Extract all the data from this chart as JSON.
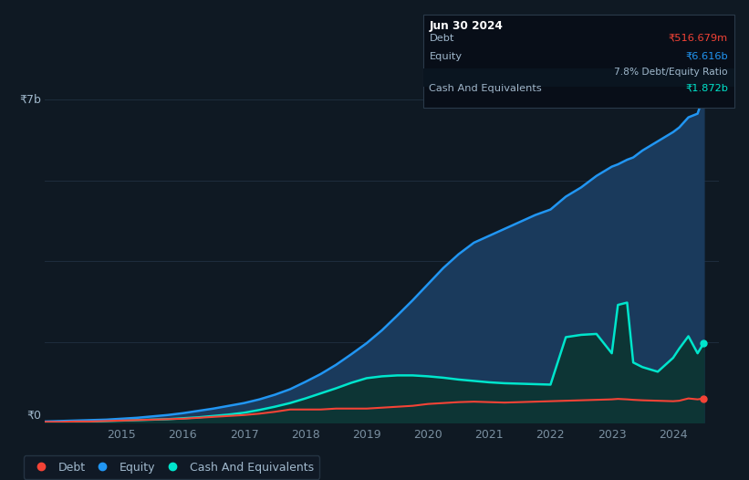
{
  "background_color": "#0f1923",
  "plot_bg_color": "#0f1923",
  "grid_color": "#1e2d3d",
  "tick_color": "#7a8fa0",
  "text_color": "#a0b8cc",
  "equity_color": "#2196f3",
  "debt_color": "#f44336",
  "cash_color": "#00e5cc",
  "equity_fill": "#1a3a5c",
  "cash_fill": "#0d3535",
  "tooltip_bg": "#080e18",
  "tooltip_border": "#2a3a4a",
  "ylim": [
    0,
    7.5
  ],
  "xlim": [
    2013.75,
    2024.75
  ],
  "x_ticks": [
    2015,
    2016,
    2017,
    2018,
    2019,
    2020,
    2021,
    2022,
    2023,
    2024
  ],
  "ylabel_7b": "₹7b",
  "ylabel_0": "₹0",
  "legend_labels": [
    "Debt",
    "Equity",
    "Cash And Equivalents"
  ],
  "legend_colors": [
    "#f44336",
    "#2196f3",
    "#00e5cc"
  ],
  "tooltip_title": "Jun 30 2024",
  "tooltip_debt_label": "Debt",
  "tooltip_debt_value": "₹516.679m",
  "tooltip_equity_label": "Equity",
  "tooltip_equity_value": "₹6.616b",
  "tooltip_ratio": "7.8% Debt/Equity Ratio",
  "tooltip_cash_label": "Cash And Equivalents",
  "tooltip_cash_value": "₹1.872b",
  "x_years": [
    2013.75,
    2014.0,
    2014.25,
    2014.5,
    2014.75,
    2015.0,
    2015.25,
    2015.5,
    2015.75,
    2016.0,
    2016.25,
    2016.5,
    2016.75,
    2017.0,
    2017.25,
    2017.5,
    2017.75,
    2018.0,
    2018.25,
    2018.5,
    2018.75,
    2019.0,
    2019.25,
    2019.5,
    2019.75,
    2020.0,
    2020.25,
    2020.5,
    2020.75,
    2021.0,
    2021.25,
    2021.5,
    2021.75,
    2022.0,
    2022.25,
    2022.5,
    2022.75,
    2023.0,
    2023.1,
    2023.25,
    2023.35,
    2023.5,
    2023.75,
    2024.0,
    2024.1,
    2024.25,
    2024.4,
    2024.5
  ],
  "equity": [
    0.02,
    0.03,
    0.04,
    0.05,
    0.06,
    0.08,
    0.1,
    0.13,
    0.16,
    0.2,
    0.25,
    0.3,
    0.36,
    0.42,
    0.5,
    0.6,
    0.72,
    0.88,
    1.05,
    1.25,
    1.48,
    1.72,
    2.0,
    2.32,
    2.65,
    3.0,
    3.35,
    3.65,
    3.9,
    4.05,
    4.2,
    4.35,
    4.5,
    4.62,
    4.9,
    5.1,
    5.35,
    5.55,
    5.6,
    5.7,
    5.75,
    5.9,
    6.1,
    6.3,
    6.4,
    6.62,
    6.7,
    7.1
  ],
  "debt": [
    0.01,
    0.01,
    0.02,
    0.02,
    0.03,
    0.04,
    0.05,
    0.06,
    0.07,
    0.08,
    0.1,
    0.12,
    0.14,
    0.16,
    0.19,
    0.23,
    0.28,
    0.28,
    0.28,
    0.3,
    0.3,
    0.3,
    0.32,
    0.34,
    0.36,
    0.4,
    0.42,
    0.44,
    0.45,
    0.44,
    0.43,
    0.44,
    0.45,
    0.46,
    0.47,
    0.48,
    0.49,
    0.5,
    0.51,
    0.5,
    0.49,
    0.48,
    0.47,
    0.46,
    0.47,
    0.52,
    0.5,
    0.52
  ],
  "cash": [
    0.01,
    0.01,
    0.02,
    0.02,
    0.03,
    0.04,
    0.05,
    0.06,
    0.07,
    0.09,
    0.11,
    0.14,
    0.17,
    0.21,
    0.27,
    0.34,
    0.42,
    0.52,
    0.63,
    0.74,
    0.86,
    0.96,
    1.0,
    1.02,
    1.02,
    1.0,
    0.97,
    0.93,
    0.9,
    0.87,
    0.85,
    0.84,
    0.83,
    0.82,
    1.85,
    1.9,
    1.92,
    1.5,
    2.55,
    2.6,
    1.3,
    1.2,
    1.1,
    1.4,
    1.6,
    1.87,
    1.5,
    1.72
  ]
}
